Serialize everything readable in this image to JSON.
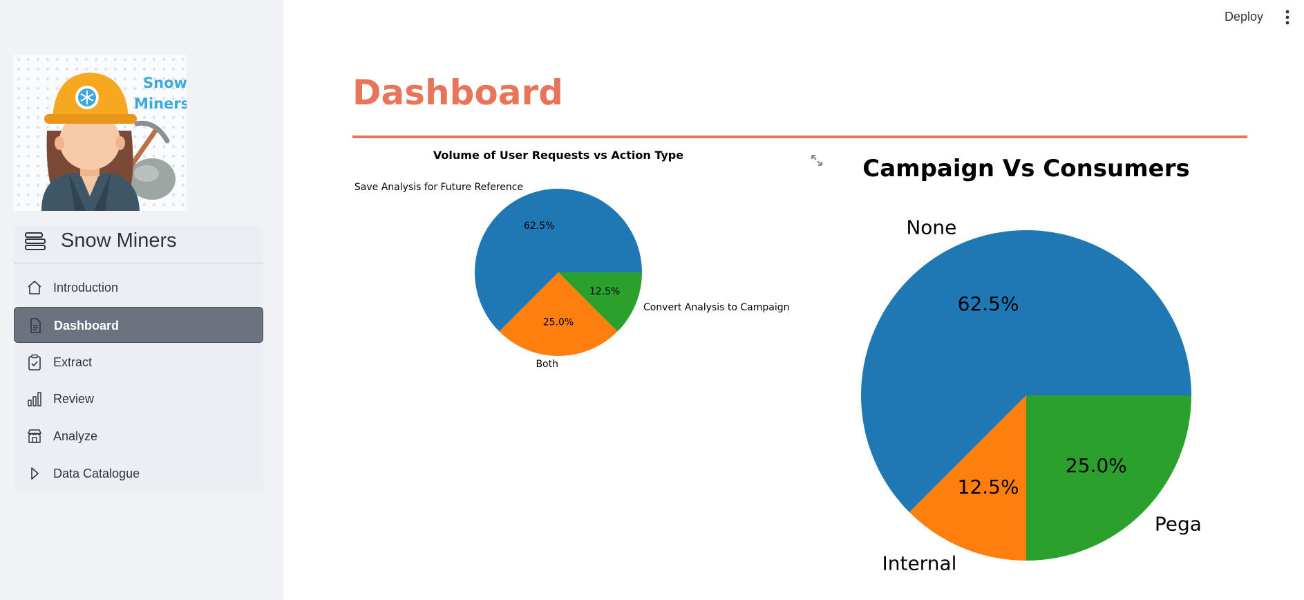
{
  "app": {
    "name": "Snow Miners",
    "logo_text": [
      "Snow",
      "Miners"
    ]
  },
  "sidebar": {
    "items": [
      {
        "label": "Introduction",
        "icon": "home-icon",
        "active": false
      },
      {
        "label": "Dashboard",
        "icon": "document-icon",
        "active": true
      },
      {
        "label": "Extract",
        "icon": "clipboard-check-icon",
        "active": false
      },
      {
        "label": "Review",
        "icon": "bar-chart-icon",
        "active": false
      },
      {
        "label": "Analyze",
        "icon": "storefront-icon",
        "active": false
      },
      {
        "label": "Data Catalogue",
        "icon": "play-triangle-icon",
        "active": false
      }
    ]
  },
  "topbar": {
    "deploy_label": "Deploy",
    "menu_icon": "vertical-dots-icon"
  },
  "page": {
    "title": "Dashboard",
    "accent_color": "#e8755a"
  },
  "chart_data": [
    {
      "type": "pie",
      "title": "Volume of User Requests vs Action Type",
      "categories": [
        "Save Analysis for Future Reference",
        "Both",
        "Convert Analysis to Campaign"
      ],
      "values": [
        62.5,
        25.0,
        12.5
      ],
      "labels": [
        "62.5%",
        "25.0%",
        "12.5%"
      ],
      "colors": [
        "#1f77b4",
        "#ff7f0e",
        "#2ca02c"
      ]
    },
    {
      "type": "pie",
      "title": "Campaign Vs Consumers",
      "categories": [
        "None",
        "Internal",
        "Pega"
      ],
      "values": [
        62.5,
        12.5,
        25.0
      ],
      "labels": [
        "62.5%",
        "12.5%",
        "25.0%"
      ],
      "colors": [
        "#1f77b4",
        "#ff7f0e",
        "#2ca02c"
      ]
    }
  ]
}
